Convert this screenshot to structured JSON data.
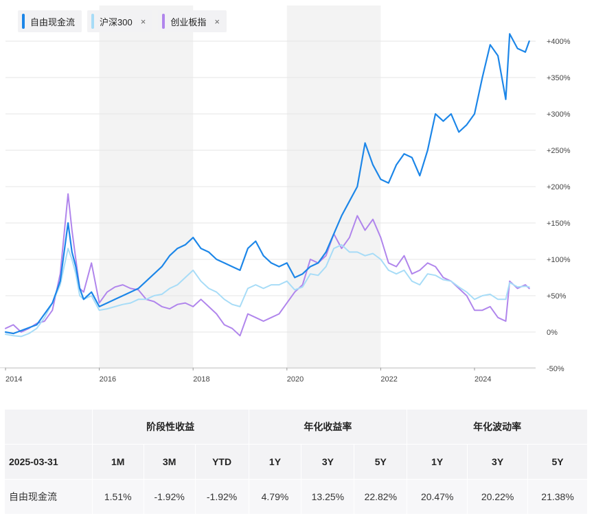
{
  "legend": [
    {
      "label": "自由现金流",
      "color": "#1c86e8",
      "closable": false
    },
    {
      "label": "沪深300",
      "color": "#a7dcf7",
      "closable": true
    },
    {
      "label": "创业板指",
      "color": "#b085ec",
      "closable": true
    }
  ],
  "legend_close_glyph": "×",
  "chart_data": {
    "type": "line",
    "x_ticks": [
      "2014",
      "2016",
      "2018",
      "2020",
      "2022",
      "2024"
    ],
    "y_ticks": [
      "+400%",
      "+350%",
      "+300%",
      "+250%",
      "+200%",
      "+150%",
      "+100%",
      "+50%",
      "0%",
      "-50%"
    ],
    "ylim": [
      -50,
      400
    ],
    "xlim": [
      "2014-01",
      "2025-04"
    ],
    "grid": true,
    "shaded_years": [
      [
        "2016",
        "2018"
      ],
      [
        "2020",
        "2022"
      ]
    ],
    "series": [
      {
        "name": "自由现金流",
        "color": "#1c86e8",
        "points": [
          [
            "2014-01",
            0
          ],
          [
            "2014-03",
            -2
          ],
          [
            "2014-05",
            2
          ],
          [
            "2014-07",
            6
          ],
          [
            "2014-09",
            10
          ],
          [
            "2014-11",
            25
          ],
          [
            "2015-01",
            40
          ],
          [
            "2015-03",
            70
          ],
          [
            "2015-05",
            150
          ],
          [
            "2015-06",
            110
          ],
          [
            "2015-07",
            90
          ],
          [
            "2015-08",
            60
          ],
          [
            "2015-09",
            45
          ],
          [
            "2015-11",
            55
          ],
          [
            "2016-01",
            35
          ],
          [
            "2016-03",
            40
          ],
          [
            "2016-05",
            45
          ],
          [
            "2016-07",
            50
          ],
          [
            "2016-09",
            55
          ],
          [
            "2016-11",
            60
          ],
          [
            "2017-01",
            70
          ],
          [
            "2017-03",
            80
          ],
          [
            "2017-05",
            90
          ],
          [
            "2017-07",
            105
          ],
          [
            "2017-09",
            115
          ],
          [
            "2017-11",
            120
          ],
          [
            "2018-01",
            130
          ],
          [
            "2018-03",
            115
          ],
          [
            "2018-05",
            110
          ],
          [
            "2018-07",
            100
          ],
          [
            "2018-09",
            95
          ],
          [
            "2018-11",
            90
          ],
          [
            "2019-01",
            85
          ],
          [
            "2019-03",
            115
          ],
          [
            "2019-05",
            125
          ],
          [
            "2019-07",
            105
          ],
          [
            "2019-09",
            95
          ],
          [
            "2019-11",
            90
          ],
          [
            "2020-01",
            95
          ],
          [
            "2020-03",
            75
          ],
          [
            "2020-05",
            80
          ],
          [
            "2020-07",
            90
          ],
          [
            "2020-09",
            95
          ],
          [
            "2020-11",
            110
          ],
          [
            "2021-01",
            135
          ],
          [
            "2021-03",
            160
          ],
          [
            "2021-05",
            180
          ],
          [
            "2021-07",
            200
          ],
          [
            "2021-09",
            260
          ],
          [
            "2021-11",
            230
          ],
          [
            "2022-01",
            210
          ],
          [
            "2022-03",
            205
          ],
          [
            "2022-05",
            230
          ],
          [
            "2022-07",
            245
          ],
          [
            "2022-09",
            240
          ],
          [
            "2022-11",
            215
          ],
          [
            "2023-01",
            250
          ],
          [
            "2023-03",
            300
          ],
          [
            "2023-05",
            290
          ],
          [
            "2023-07",
            300
          ],
          [
            "2023-09",
            275
          ],
          [
            "2023-11",
            285
          ],
          [
            "2024-01",
            300
          ],
          [
            "2024-03",
            350
          ],
          [
            "2024-05",
            395
          ],
          [
            "2024-07",
            380
          ],
          [
            "2024-09",
            320
          ],
          [
            "2024-10",
            410
          ],
          [
            "2024-12",
            390
          ],
          [
            "2025-02",
            385
          ],
          [
            "2025-03",
            400
          ]
        ]
      },
      {
        "name": "沪深300",
        "color": "#a7dcf7",
        "points": [
          [
            "2014-01",
            -3
          ],
          [
            "2014-03",
            -5
          ],
          [
            "2014-05",
            -6
          ],
          [
            "2014-07",
            -2
          ],
          [
            "2014-09",
            5
          ],
          [
            "2014-11",
            20
          ],
          [
            "2015-01",
            40
          ],
          [
            "2015-03",
            65
          ],
          [
            "2015-05",
            115
          ],
          [
            "2015-06",
            100
          ],
          [
            "2015-07",
            80
          ],
          [
            "2015-08",
            50
          ],
          [
            "2015-09",
            45
          ],
          [
            "2015-11",
            50
          ],
          [
            "2016-01",
            30
          ],
          [
            "2016-03",
            32
          ],
          [
            "2016-05",
            35
          ],
          [
            "2016-07",
            38
          ],
          [
            "2016-09",
            40
          ],
          [
            "2016-11",
            45
          ],
          [
            "2017-01",
            45
          ],
          [
            "2017-03",
            50
          ],
          [
            "2017-05",
            52
          ],
          [
            "2017-07",
            60
          ],
          [
            "2017-09",
            65
          ],
          [
            "2017-11",
            75
          ],
          [
            "2018-01",
            85
          ],
          [
            "2018-03",
            70
          ],
          [
            "2018-05",
            60
          ],
          [
            "2018-07",
            55
          ],
          [
            "2018-09",
            45
          ],
          [
            "2018-11",
            38
          ],
          [
            "2019-01",
            35
          ],
          [
            "2019-03",
            60
          ],
          [
            "2019-05",
            65
          ],
          [
            "2019-07",
            60
          ],
          [
            "2019-09",
            65
          ],
          [
            "2019-11",
            65
          ],
          [
            "2020-01",
            70
          ],
          [
            "2020-03",
            58
          ],
          [
            "2020-05",
            62
          ],
          [
            "2020-07",
            80
          ],
          [
            "2020-09",
            78
          ],
          [
            "2020-11",
            90
          ],
          [
            "2021-01",
            115
          ],
          [
            "2021-03",
            120
          ],
          [
            "2021-05",
            110
          ],
          [
            "2021-07",
            110
          ],
          [
            "2021-09",
            105
          ],
          [
            "2021-11",
            108
          ],
          [
            "2022-01",
            100
          ],
          [
            "2022-03",
            85
          ],
          [
            "2022-05",
            80
          ],
          [
            "2022-07",
            85
          ],
          [
            "2022-09",
            70
          ],
          [
            "2022-11",
            65
          ],
          [
            "2023-01",
            80
          ],
          [
            "2023-03",
            78
          ],
          [
            "2023-05",
            72
          ],
          [
            "2023-07",
            70
          ],
          [
            "2023-09",
            62
          ],
          [
            "2023-11",
            55
          ],
          [
            "2024-01",
            45
          ],
          [
            "2024-03",
            50
          ],
          [
            "2024-05",
            52
          ],
          [
            "2024-07",
            45
          ],
          [
            "2024-09",
            45
          ],
          [
            "2024-10",
            68
          ],
          [
            "2024-12",
            62
          ],
          [
            "2025-02",
            63
          ],
          [
            "2025-03",
            62
          ]
        ]
      },
      {
        "name": "创业板指",
        "color": "#b085ec",
        "points": [
          [
            "2014-01",
            5
          ],
          [
            "2014-03",
            10
          ],
          [
            "2014-05",
            0
          ],
          [
            "2014-07",
            5
          ],
          [
            "2014-09",
            12
          ],
          [
            "2014-11",
            15
          ],
          [
            "2015-01",
            30
          ],
          [
            "2015-03",
            80
          ],
          [
            "2015-05",
            190
          ],
          [
            "2015-06",
            140
          ],
          [
            "2015-07",
            100
          ],
          [
            "2015-08",
            60
          ],
          [
            "2015-09",
            55
          ],
          [
            "2015-11",
            95
          ],
          [
            "2016-01",
            40
          ],
          [
            "2016-03",
            55
          ],
          [
            "2016-05",
            62
          ],
          [
            "2016-07",
            65
          ],
          [
            "2016-09",
            60
          ],
          [
            "2016-11",
            58
          ],
          [
            "2017-01",
            45
          ],
          [
            "2017-03",
            42
          ],
          [
            "2017-05",
            35
          ],
          [
            "2017-07",
            32
          ],
          [
            "2017-09",
            38
          ],
          [
            "2017-11",
            40
          ],
          [
            "2018-01",
            35
          ],
          [
            "2018-03",
            45
          ],
          [
            "2018-05",
            35
          ],
          [
            "2018-07",
            25
          ],
          [
            "2018-09",
            10
          ],
          [
            "2018-11",
            5
          ],
          [
            "2019-01",
            -5
          ],
          [
            "2019-03",
            25
          ],
          [
            "2019-05",
            20
          ],
          [
            "2019-07",
            15
          ],
          [
            "2019-09",
            20
          ],
          [
            "2019-11",
            25
          ],
          [
            "2020-01",
            40
          ],
          [
            "2020-03",
            55
          ],
          [
            "2020-05",
            65
          ],
          [
            "2020-07",
            100
          ],
          [
            "2020-09",
            95
          ],
          [
            "2020-11",
            105
          ],
          [
            "2021-01",
            135
          ],
          [
            "2021-03",
            115
          ],
          [
            "2021-05",
            130
          ],
          [
            "2021-07",
            160
          ],
          [
            "2021-09",
            140
          ],
          [
            "2021-11",
            155
          ],
          [
            "2022-01",
            130
          ],
          [
            "2022-03",
            95
          ],
          [
            "2022-05",
            90
          ],
          [
            "2022-07",
            105
          ],
          [
            "2022-09",
            80
          ],
          [
            "2022-11",
            85
          ],
          [
            "2023-01",
            95
          ],
          [
            "2023-03",
            90
          ],
          [
            "2023-05",
            75
          ],
          [
            "2023-07",
            70
          ],
          [
            "2023-09",
            60
          ],
          [
            "2023-11",
            50
          ],
          [
            "2024-01",
            30
          ],
          [
            "2024-03",
            30
          ],
          [
            "2024-05",
            35
          ],
          [
            "2024-07",
            20
          ],
          [
            "2024-09",
            15
          ],
          [
            "2024-10",
            70
          ],
          [
            "2024-12",
            60
          ],
          [
            "2025-02",
            65
          ],
          [
            "2025-03",
            60
          ]
        ]
      }
    ]
  },
  "table": {
    "group_headers": [
      "阶段性收益",
      "年化收益率",
      "年化波动率"
    ],
    "date": "2025-03-31",
    "subheaders": [
      "1M",
      "3M",
      "YTD",
      "1Y",
      "3Y",
      "5Y",
      "1Y",
      "3Y",
      "5Y"
    ],
    "rows": [
      {
        "name": "自由现金流",
        "values": [
          "1.51%",
          "-1.92%",
          "-1.92%",
          "4.79%",
          "13.25%",
          "22.82%",
          "20.47%",
          "20.22%",
          "21.38%"
        ]
      }
    ]
  }
}
